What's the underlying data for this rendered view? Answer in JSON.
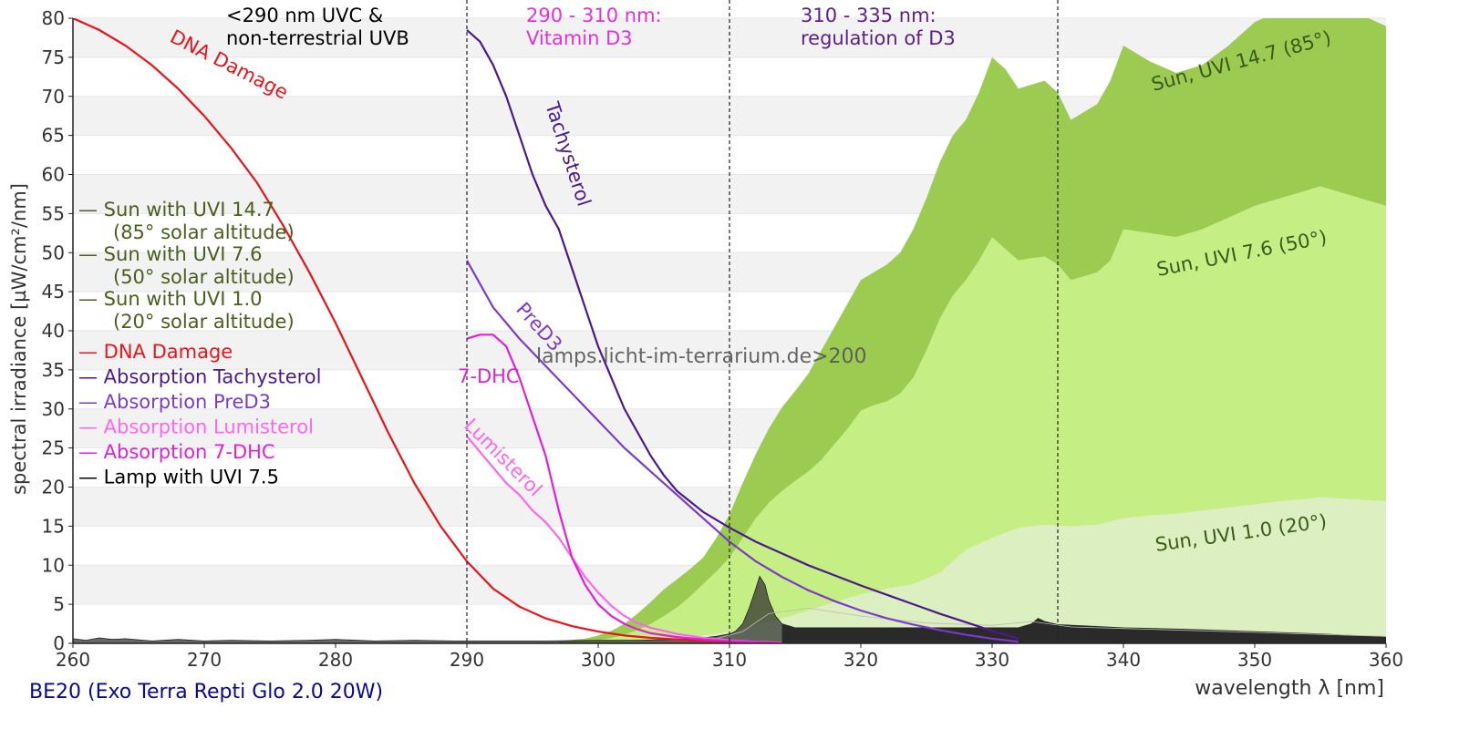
{
  "chart_data": {
    "type": "area",
    "xlabel": "wavelength λ [nm]",
    "ylabel": "spectral irradiance [µW/cm²/nm]",
    "xlim": [
      260,
      360
    ],
    "ylim": [
      0,
      80
    ],
    "x_ticks": [
      "260",
      "270",
      "280",
      "290",
      "300",
      "310",
      "320",
      "330",
      "340",
      "350",
      "360"
    ],
    "y_ticks": [
      "0",
      "5",
      "10",
      "15",
      "20",
      "25",
      "30",
      "35",
      "40",
      "45",
      "50",
      "55",
      "60",
      "65",
      "70",
      "75",
      "80"
    ],
    "grid": "horizontal alternating bands",
    "legend_position": "left",
    "watermark": "lamps.licht-im-terrarium.de>200",
    "regions": [
      {
        "x_from": 260,
        "x_to": 290,
        "label_lines": [
          "<290 nm UVC &",
          "non-terrestrial UVB"
        ],
        "color": "#000000"
      },
      {
        "x_from": 290,
        "x_to": 310,
        "label_lines": [
          "290 - 310 nm:",
          "Vitamin D3"
        ],
        "color": "#e030e0"
      },
      {
        "x_from": 310,
        "x_to": 335,
        "label_lines": [
          "310 - 335 nm:",
          "regulation of D3"
        ],
        "color": "#5b1f8a"
      }
    ],
    "divider_lines_x": [
      290,
      310,
      335
    ],
    "sun_series": [
      {
        "name": "Sun with UVI 14.7",
        "sub": "(85° solar altitude)",
        "label": "Sun, UVI 14.7 (85°)",
        "color": "#9ccb52",
        "x": [
          297,
          299,
          300,
          301,
          302,
          303,
          304,
          305,
          306,
          307,
          308,
          309,
          310,
          311,
          312,
          313,
          314,
          315,
          316,
          317,
          318,
          319,
          320,
          321,
          322,
          323,
          324,
          325,
          326,
          327,
          328,
          329,
          330,
          331,
          332,
          333,
          334,
          335,
          336,
          337,
          338,
          339,
          340,
          342,
          344,
          346,
          348,
          350,
          352,
          354,
          355,
          356,
          358,
          360
        ],
        "y": [
          0.3,
          0.6,
          1.0,
          1.6,
          2.5,
          3.8,
          5.3,
          6.9,
          8.2,
          9.5,
          11.0,
          13.5,
          16.5,
          20.5,
          24.2,
          27.5,
          30.2,
          32.3,
          34.5,
          37.5,
          40.5,
          43.5,
          46.5,
          47.5,
          48.5,
          50.0,
          53.0,
          57.0,
          61.5,
          65.0,
          67.0,
          70.5,
          75.0,
          73.5,
          71.0,
          71.5,
          72.0,
          70.5,
          67.0,
          68.0,
          69.0,
          72.0,
          76.5,
          74.5,
          73.0,
          74.0,
          76.5,
          79.5,
          81.0,
          82.5,
          83.0,
          82.0,
          80.5,
          79.0
        ]
      },
      {
        "name": "Sun with UVI 7.6",
        "sub": "(50° solar altitude)",
        "label": "Sun, UVI 7.6 (50°)",
        "color": "#c5ee84",
        "x": [
          297,
          299,
          300,
          301,
          302,
          303,
          304,
          305,
          306,
          307,
          308,
          309,
          310,
          311,
          312,
          313,
          314,
          315,
          316,
          317,
          318,
          319,
          320,
          321,
          322,
          323,
          324,
          325,
          326,
          327,
          328,
          329,
          330,
          331,
          332,
          333,
          334,
          335,
          336,
          337,
          338,
          339,
          340,
          342,
          344,
          346,
          348,
          350,
          352,
          354,
          355,
          356,
          358,
          360
        ],
        "y": [
          0.1,
          0.2,
          0.4,
          0.7,
          1.1,
          1.7,
          2.5,
          3.5,
          4.6,
          6.0,
          7.6,
          9.2,
          11.0,
          13.5,
          16.0,
          18.0,
          19.5,
          20.8,
          22.0,
          23.5,
          25.5,
          27.5,
          29.8,
          30.5,
          31.0,
          32.0,
          34.0,
          37.5,
          41.5,
          44.5,
          46.5,
          49.0,
          52.0,
          50.5,
          49.0,
          49.3,
          49.5,
          48.5,
          46.5,
          47.0,
          47.5,
          49.0,
          53.0,
          52.5,
          52.0,
          53.0,
          54.5,
          56.0,
          57.0,
          58.0,
          58.5,
          58.0,
          57.0,
          56.0
        ]
      },
      {
        "name": "Sun with UVI 1.0",
        "sub": "(20° solar altitude)",
        "label": "Sun, UVI 1.0 (20°)",
        "color": "#dcefc0",
        "x": [
          302,
          304,
          306,
          308,
          310,
          312,
          314,
          316,
          318,
          320,
          322,
          324,
          326,
          328,
          330,
          332,
          334,
          336,
          338,
          340,
          342,
          344,
          346,
          348,
          350,
          352,
          354,
          355,
          356,
          358,
          360
        ],
        "y": [
          0.1,
          0.3,
          0.6,
          1.0,
          1.5,
          2.3,
          3.2,
          4.2,
          5.3,
          6.3,
          7.0,
          7.6,
          9.0,
          12.0,
          13.5,
          14.8,
          15.2,
          15.0,
          15.2,
          16.0,
          16.4,
          16.6,
          17.0,
          17.4,
          17.8,
          18.2,
          18.5,
          18.7,
          18.6,
          18.4,
          18.2
        ]
      }
    ],
    "lamp_series": {
      "name": "Lamp with UVI 7.5",
      "color": "#333333",
      "x": [
        260,
        261,
        262,
        263,
        264,
        266,
        268,
        270,
        272,
        275,
        278,
        280,
        283,
        286,
        289,
        290,
        293,
        296,
        300,
        303,
        306,
        308,
        309,
        310,
        310.5,
        311,
        311.5,
        312,
        312.3,
        312.7,
        313,
        313.5,
        314,
        315,
        320,
        325,
        330,
        332,
        333,
        333.5,
        334,
        335,
        340,
        345,
        350,
        355,
        360
      ],
      "y": [
        0.6,
        0.4,
        0.7,
        0.5,
        0.6,
        0.3,
        0.5,
        0.3,
        0.4,
        0.3,
        0.4,
        0.5,
        0.3,
        0.4,
        0.3,
        0.3,
        0.3,
        0.3,
        0.4,
        0.4,
        0.5,
        0.7,
        0.9,
        1.2,
        1.6,
        2.5,
        4.5,
        7.0,
        8.6,
        7.5,
        5.5,
        3.5,
        2.5,
        2.0,
        2.0,
        2.0,
        2.0,
        2.0,
        2.5,
        3.2,
        2.8,
        2.4,
        2.0,
        1.8,
        1.5,
        1.2,
        0.8
      ]
    },
    "line_series": [
      {
        "name": "DNA Damage",
        "label": "DNA Damage",
        "color": "#e8141c",
        "x": [
          260,
          262,
          264,
          266,
          268,
          270,
          272,
          274,
          276,
          278,
          280,
          282,
          284,
          286,
          288,
          290,
          292,
          294,
          296,
          298,
          300,
          302,
          304,
          306,
          308,
          310,
          312,
          314
        ],
        "y": [
          80,
          78.5,
          76.5,
          74,
          71,
          67.5,
          63.5,
          59,
          53.5,
          47.5,
          41,
          34,
          27,
          20.5,
          15,
          10.5,
          7,
          4.7,
          3.2,
          2.2,
          1.5,
          1.0,
          0.7,
          0.5,
          0.35,
          0.25,
          0.18,
          0.12
        ]
      },
      {
        "name": "Absorption Tachysterol",
        "label": "Tachysterol",
        "color": "#4b1a8a",
        "x": [
          290,
          291,
          292,
          293,
          294,
          295,
          296,
          297,
          298,
          299,
          300,
          301,
          302,
          303,
          304,
          305,
          306,
          308,
          310,
          312,
          314,
          316,
          318,
          320,
          322,
          324,
          326,
          328,
          330,
          332
        ],
        "y": [
          78.5,
          77,
          74,
          70,
          65,
          60,
          56,
          53,
          48,
          43,
          38,
          34,
          30,
          27,
          24,
          21.5,
          19.5,
          16.8,
          14.8,
          13.0,
          11.5,
          10.0,
          8.7,
          7.4,
          6.2,
          5.0,
          3.8,
          2.7,
          1.6,
          0.6
        ]
      },
      {
        "name": "Absorption PreD3",
        "label": "PreD3",
        "color": "#7a3cc8",
        "x": [
          290,
          292,
          294,
          296,
          298,
          300,
          302,
          304,
          306,
          308,
          310,
          312,
          314,
          316,
          318,
          320,
          322,
          324,
          326,
          328,
          330,
          332
        ],
        "y": [
          49,
          43,
          39,
          35.5,
          32,
          28.5,
          25,
          22,
          19,
          16,
          13,
          10.5,
          8.5,
          6.8,
          5.4,
          4.2,
          3.2,
          2.4,
          1.7,
          1.1,
          0.6,
          0.2
        ]
      },
      {
        "name": "Absorption Lumisterol",
        "label": "Lumisterol",
        "color": "#ff66ee",
        "x": [
          290,
          291,
          292,
          293,
          294,
          295,
          296,
          297,
          298,
          299,
          300,
          301,
          302,
          303,
          304,
          306,
          308,
          310,
          312,
          314
        ],
        "y": [
          26.5,
          24.5,
          22.5,
          20.5,
          19,
          17,
          15.5,
          13.5,
          11,
          8.5,
          6.5,
          4.8,
          3.5,
          2.6,
          2.0,
          1.2,
          0.7,
          0.4,
          0.2,
          0.1
        ]
      },
      {
        "name": "Absorption 7-DHC",
        "label": "7-DHC",
        "color": "#e01fd8",
        "x": [
          290,
          291,
          292,
          293,
          294,
          295,
          296,
          297,
          298,
          299,
          300,
          301,
          302,
          303,
          304,
          306,
          308,
          310,
          312,
          314
        ],
        "y": [
          39,
          39.5,
          39.5,
          38,
          34,
          29,
          24,
          17,
          11,
          7.5,
          5,
          3.5,
          2.5,
          1.8,
          1.3,
          0.8,
          0.5,
          0.3,
          0.15,
          0.05
        ]
      }
    ],
    "curve_labels": [
      {
        "text": "DNA Damage",
        "color": "#e8141c"
      },
      {
        "text": "Tachysterol",
        "color": "#4b1a8a"
      },
      {
        "text": "PreD3",
        "color": "#7a3cc8"
      },
      {
        "text": "Lumisterol",
        "color": "#ff66ee"
      },
      {
        "text": "7-DHC",
        "color": "#e01fd8"
      },
      {
        "text": "Sun, UVI 14.7 (85°)",
        "color": "#3a5a1a"
      },
      {
        "text": "Sun, UVI 7.6 (50°)",
        "color": "#3a5a1a"
      },
      {
        "text": "Sun, UVI 1.0 (20°)",
        "color": "#3a5a1a"
      }
    ],
    "legend": [
      {
        "text": "— Sun with UVI 14.7",
        "sub": "(85° solar altitude)",
        "color": "#4a5e1e"
      },
      {
        "text": "— Sun with UVI 7.6",
        "sub": "(50° solar altitude)",
        "color": "#4a5e1e"
      },
      {
        "text": "— Sun with UVI 1.0",
        "sub": "(20° solar altitude)",
        "color": "#4a5e1e"
      },
      {
        "text": "— DNA Damage",
        "color": "#e8141c"
      },
      {
        "text": "— Absorption Tachysterol",
        "color": "#4b1a8a"
      },
      {
        "text": "— Absorption PreD3",
        "color": "#7a3cc8"
      },
      {
        "text": "— Absorption Lumisterol",
        "color": "#ff66ee"
      },
      {
        "text": "— Absorption 7-DHC",
        "color": "#e01fd8"
      },
      {
        "text": "— Lamp with UVI 7.5",
        "color": "#000000"
      }
    ]
  },
  "caption": "BE20 (Exo Terra Repti Glo 2.0 20W)",
  "colors": {
    "caption": "#0a0a8a",
    "band": "#f2f2f2",
    "axis": "#222222"
  }
}
